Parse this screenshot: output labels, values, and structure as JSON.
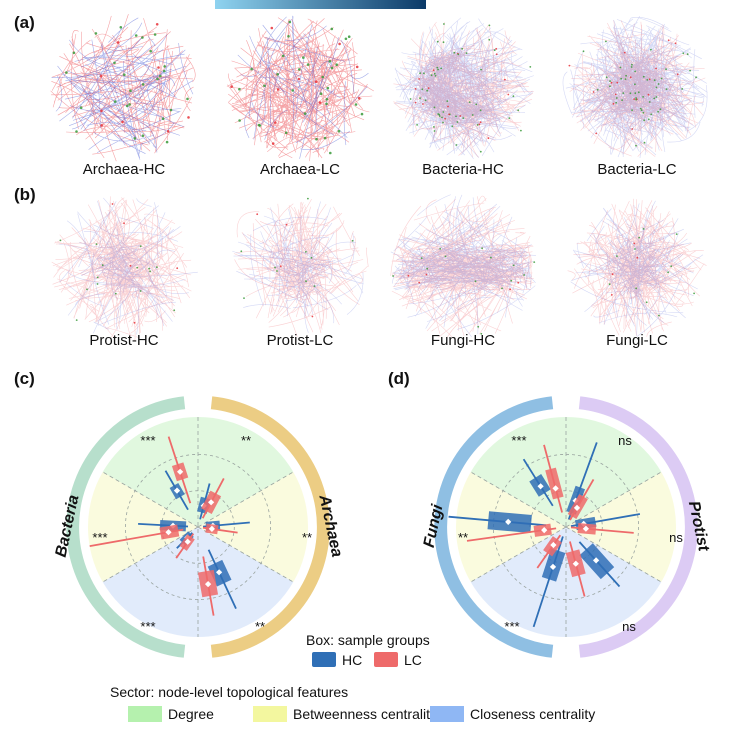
{
  "colors": {
    "hc": "#2f6fb6",
    "lc": "#ee6a6a",
    "degree": "#c9f3c5",
    "betweenness": "#f6f7c2",
    "closeness": "#c8dbf8",
    "bacteria_ring": "#b7dfcc",
    "archaea_ring": "#eccd84",
    "fungi_ring": "#8fbfe3",
    "protist_ring": "#dccbf4",
    "edge_red": "#e8323a",
    "edge_blue": "#3a4ed0",
    "node_green": "#3a9a3a"
  },
  "panel_a": {
    "label": "(a)",
    "networks": [
      {
        "name": "Archaea-HC",
        "red_share": 0.65,
        "edges": 160,
        "nodes": 36
      },
      {
        "name": "Archaea-LC",
        "red_share": 0.8,
        "edges": 200,
        "nodes": 44
      },
      {
        "name": "Bacteria-HC",
        "red_share": 0.45,
        "edges": 520,
        "nodes": 70
      },
      {
        "name": "Bacteria-LC",
        "red_share": 0.45,
        "edges": 560,
        "nodes": 70
      }
    ]
  },
  "panel_b": {
    "label": "(b)",
    "networks": [
      {
        "name": "Protist-HC",
        "red_share": 0.72,
        "edges": 300,
        "nodes": 20
      },
      {
        "name": "Protist-LC",
        "red_share": 0.72,
        "edges": 230,
        "nodes": 14
      },
      {
        "name": "Fungi-HC",
        "red_share": 0.62,
        "edges": 420,
        "nodes": 20
      },
      {
        "name": "Fungi-LC",
        "red_share": 0.68,
        "edges": 320,
        "nodes": 16
      }
    ]
  },
  "panel_c": {
    "label": "(c)",
    "left_group": "Bacteria",
    "right_group": "Archaea",
    "left_significance": [
      "***",
      "***",
      "***"
    ],
    "right_significance": [
      "**",
      "**",
      "**"
    ]
  },
  "panel_d": {
    "label": "(d)",
    "left_group": "Fungi",
    "right_group": "Protist",
    "left_significance": [
      "***",
      "**",
      "***"
    ],
    "right_significance": [
      "ns",
      "ns",
      "ns"
    ]
  },
  "legend": {
    "box_title": "Box: sample groups",
    "hc_label": "HC",
    "lc_label": "LC",
    "sector_title": "Sector: node-level topological features",
    "degree_label": "Degree",
    "betweenness_label": "Betweenness centrality",
    "closeness_label": "Closeness centrality"
  }
}
